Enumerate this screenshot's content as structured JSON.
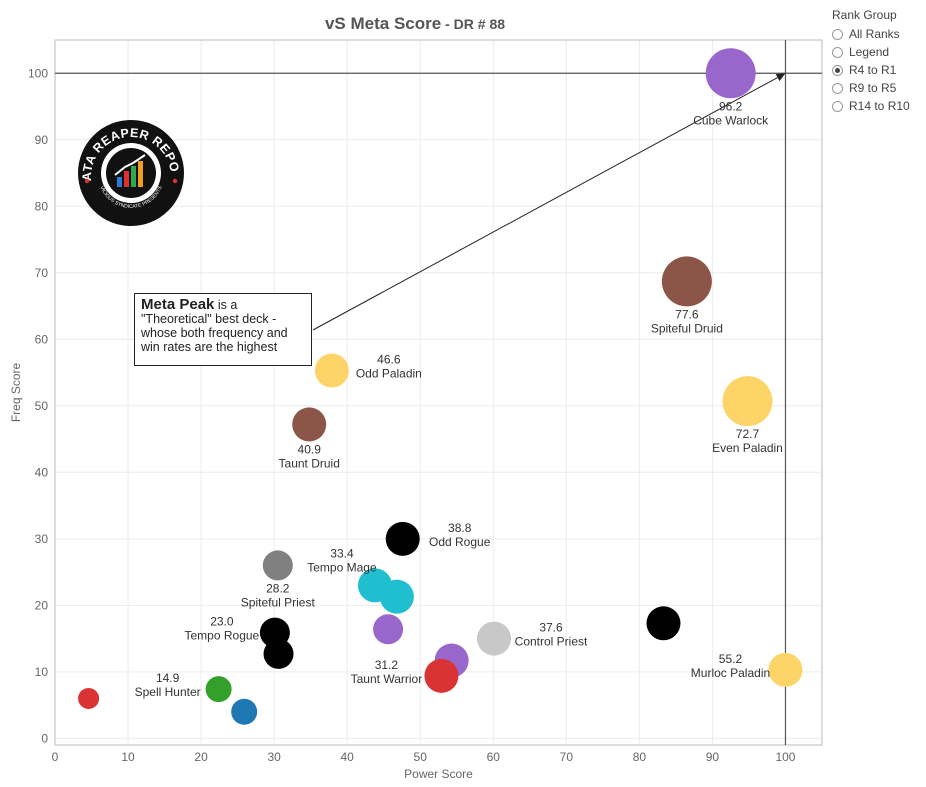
{
  "chart_data": {
    "type": "scatter",
    "title": "vS Meta Score",
    "subtitle": "DR # 88",
    "xlabel": "Power Score",
    "ylabel": "Freq Score",
    "xlim": [
      0,
      105
    ],
    "ylim": [
      -1,
      105
    ],
    "x_ticks": [
      "0",
      "10",
      "20",
      "30",
      "40",
      "50",
      "60",
      "70",
      "80",
      "90",
      "100"
    ],
    "y_ticks": [
      "0",
      "10",
      "20",
      "30",
      "40",
      "50",
      "60",
      "70",
      "80",
      "90",
      "100"
    ],
    "grid": true,
    "reference_lines": {
      "x": 100,
      "y": 100
    },
    "points": [
      {
        "x": 92.5,
        "y": 100,
        "color": "#9966cc",
        "size": "large",
        "score": "96.2",
        "name": "Cube Warlock",
        "label_pos": "below"
      },
      {
        "x": 86.5,
        "y": 68.7,
        "color": "#8b5548",
        "size": "large",
        "score": "77.6",
        "name": "Spiteful Druid",
        "label_pos": "below"
      },
      {
        "x": 94.8,
        "y": 50.7,
        "color": "#fdd468",
        "size": "large",
        "score": "72.7",
        "name": "Even Paladin",
        "label_pos": "below"
      },
      {
        "x": 100,
        "y": 10.3,
        "color": "#fdd468",
        "size": "medium",
        "score": "55.2",
        "name": "Murloc Paladin",
        "label_pos": "left"
      },
      {
        "x": 83.3,
        "y": 17.3,
        "color": "#000000",
        "size": "medium",
        "score": "",
        "name": "",
        "label_pos": "none"
      },
      {
        "x": 60.1,
        "y": 15.0,
        "color": "#c8c8c8",
        "size": "medium",
        "score": "37.6",
        "name": "Control Priest",
        "label_pos": "right"
      },
      {
        "x": 54.3,
        "y": 11.7,
        "color": "#9966cc",
        "size": "medium",
        "score": "",
        "name": "",
        "label_pos": "none"
      },
      {
        "x": 52.9,
        "y": 9.4,
        "color": "#d93333",
        "size": "medium",
        "score": "31.2",
        "name": "Taunt Warrior",
        "label_pos": "left"
      },
      {
        "x": 47.6,
        "y": 30.0,
        "color": "#000000",
        "size": "medium",
        "score": "38.8",
        "name": "Odd Rogue",
        "label_pos": "right"
      },
      {
        "x": 46.8,
        "y": 21.3,
        "color": "#1fbfcf",
        "size": "medium",
        "score": "",
        "name": "",
        "label_pos": "none"
      },
      {
        "x": 43.8,
        "y": 23.0,
        "color": "#1fbfcf",
        "size": "medium",
        "score": "33.4",
        "name": "Tempo Mage",
        "label_pos": "left-above"
      },
      {
        "x": 45.6,
        "y": 16.4,
        "color": "#9966cc",
        "size": "small",
        "score": "",
        "name": "",
        "label_pos": "none"
      },
      {
        "x": 37.9,
        "y": 55.3,
        "color": "#fdd468",
        "size": "medium",
        "score": "46.6",
        "name": "Odd Paladin",
        "label_pos": "right"
      },
      {
        "x": 34.8,
        "y": 47.2,
        "color": "#8b5548",
        "size": "medium",
        "score": "40.9",
        "name": "Taunt Druid",
        "label_pos": "below"
      },
      {
        "x": 30.5,
        "y": 26.0,
        "color": "#808080",
        "size": "small",
        "score": "28.2",
        "name": "Spiteful Priest",
        "label_pos": "below"
      },
      {
        "x": 30.1,
        "y": 15.9,
        "color": "#000000",
        "size": "small",
        "score": "23.0",
        "name": "Tempo Rogue",
        "label_pos": "left"
      },
      {
        "x": 30.6,
        "y": 12.7,
        "color": "#000000",
        "size": "small",
        "score": "",
        "name": "",
        "label_pos": "none"
      },
      {
        "x": 22.4,
        "y": 7.4,
        "color": "#33a02c",
        "size": "xsmall",
        "score": "14.9",
        "name": "Spell Hunter",
        "label_pos": "left"
      },
      {
        "x": 25.9,
        "y": 4.0,
        "color": "#1f78b4",
        "size": "xsmall",
        "score": "",
        "name": "",
        "label_pos": "none"
      },
      {
        "x": 4.6,
        "y": 6.0,
        "color": "#d93333",
        "size": "tiny",
        "score": "",
        "name": "",
        "label_pos": "none"
      }
    ]
  },
  "annotation": {
    "strong": "Meta Peak",
    "line1_rest": " is a",
    "line2": "\"Theoretical\" best deck -",
    "line3": "whose both frequency and",
    "line4": "win rates are the highest"
  },
  "legend": {
    "title": "Rank Group",
    "items": [
      {
        "label": "All Ranks",
        "checked": false
      },
      {
        "label": "Legend",
        "checked": false
      },
      {
        "label": "R4 to R1",
        "checked": true
      },
      {
        "label": "R9 to R5",
        "checked": false
      },
      {
        "label": "R14 to R10",
        "checked": false
      }
    ]
  },
  "logo": {
    "text_top": "DATA REAPER REPORT",
    "text_bottom": "VICIOUS SYNDICATE PRESENTS"
  }
}
